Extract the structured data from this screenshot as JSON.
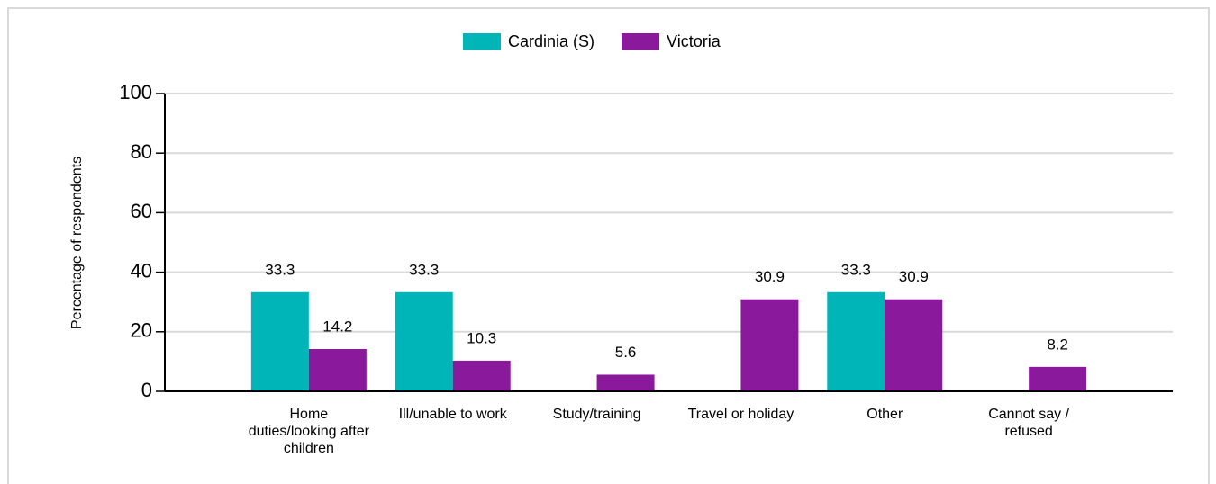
{
  "chart_data": {
    "type": "bar",
    "y_label": "Percentage of respondents",
    "categories": [
      "Home duties/looking after children",
      "Ill/unable to work",
      "Study/training",
      "Travel or holiday",
      "Other",
      "Cannot say / refused"
    ],
    "series": [
      {
        "name": "Cardinia (S)",
        "color": "#00b5b8",
        "values": [
          33.3,
          33.3,
          null,
          null,
          33.3,
          null
        ]
      },
      {
        "name": "Victoria",
        "color": "#8a1a9b",
        "values": [
          14.2,
          10.3,
          5.6,
          30.9,
          30.9,
          8.2
        ]
      }
    ],
    "ylim": [
      0,
      100
    ],
    "yticks": [
      0,
      20,
      40,
      60,
      80,
      100
    ],
    "grid": true,
    "legend": "top"
  }
}
